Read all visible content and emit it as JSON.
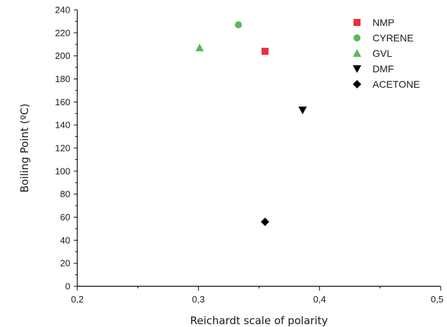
{
  "chart_data": {
    "type": "scatter",
    "title": "",
    "xlabel": "Reichardt scale of polarity",
    "ylabel": "Boiling Point (ºC)",
    "xlim": [
      0.2,
      0.5
    ],
    "ylim": [
      0,
      240
    ],
    "x_ticks": [
      0.2,
      0.3,
      0.4,
      0.5
    ],
    "x_tick_labels": [
      "0,2",
      "0,3",
      "0,4",
      "0,5"
    ],
    "y_ticks": [
      0,
      20,
      40,
      60,
      80,
      100,
      120,
      140,
      160,
      180,
      200,
      220,
      240
    ],
    "y_tick_labels": [
      "0",
      "20",
      "40",
      "60",
      "80",
      "100",
      "120",
      "140",
      "160",
      "180",
      "200",
      "220",
      "240"
    ],
    "grid": false,
    "legend_position": "top-right",
    "series": [
      {
        "name": "NMP",
        "marker": "square",
        "color": "#e8323a",
        "x": [
          0.355
        ],
        "y": [
          204
        ]
      },
      {
        "name": "CYRENE",
        "marker": "circle",
        "color": "#5cb85c",
        "x": [
          0.333
        ],
        "y": [
          227
        ]
      },
      {
        "name": "GVL",
        "marker": "triangle-up",
        "color": "#5cb85c",
        "x": [
          0.301
        ],
        "y": [
          207
        ]
      },
      {
        "name": "DMF",
        "marker": "triangle-down",
        "color": "#000000",
        "x": [
          0.386
        ],
        "y": [
          153
        ]
      },
      {
        "name": "ACETONE",
        "marker": "diamond",
        "color": "#000000",
        "x": [
          0.355
        ],
        "y": [
          56
        ]
      }
    ]
  }
}
